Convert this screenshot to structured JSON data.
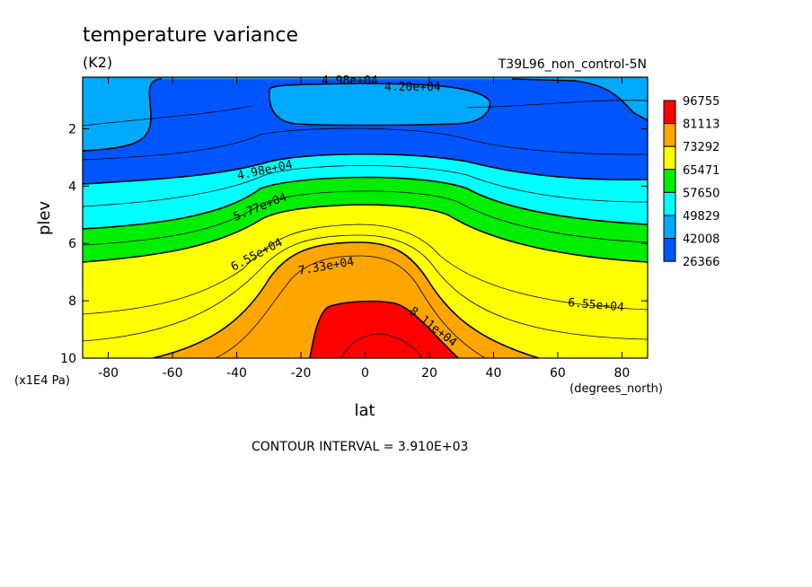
{
  "chart_data": {
    "type": "heatmap",
    "title": "temperature variance",
    "units": "(K2)",
    "dataset": "T39L96_non_control-5N",
    "xlabel": "lat",
    "xunits": "(degrees_north)",
    "ylabel": "plev",
    "yunits": "(x1E4 Pa)",
    "xlim": [
      -88,
      88
    ],
    "ylim": [
      0.2,
      10
    ],
    "y_inverted": true,
    "x_ticks": [
      -80,
      -60,
      -40,
      -20,
      0,
      20,
      40,
      60,
      80
    ],
    "y_ticks": [
      2,
      4,
      6,
      8,
      10
    ],
    "colorbar": {
      "levels": [
        "96755",
        "81113",
        "73292",
        "65471",
        "57650",
        "49829",
        "42008",
        "26366"
      ],
      "colors": [
        "#ff0000",
        "#ffa500",
        "#ffff00",
        "#00ee00",
        "#00ffff",
        "#00aaff",
        "#0055ff"
      ]
    },
    "contour_labels": [
      "4.98e+04",
      "4.20e+04",
      "4.98e+04",
      "5.77e+04",
      "6.55e+04",
      "7.33e+04",
      "8.11e+04",
      "6.55e+04"
    ],
    "contour_interval_text": "CONTOUR INTERVAL = 3.910E+03"
  }
}
